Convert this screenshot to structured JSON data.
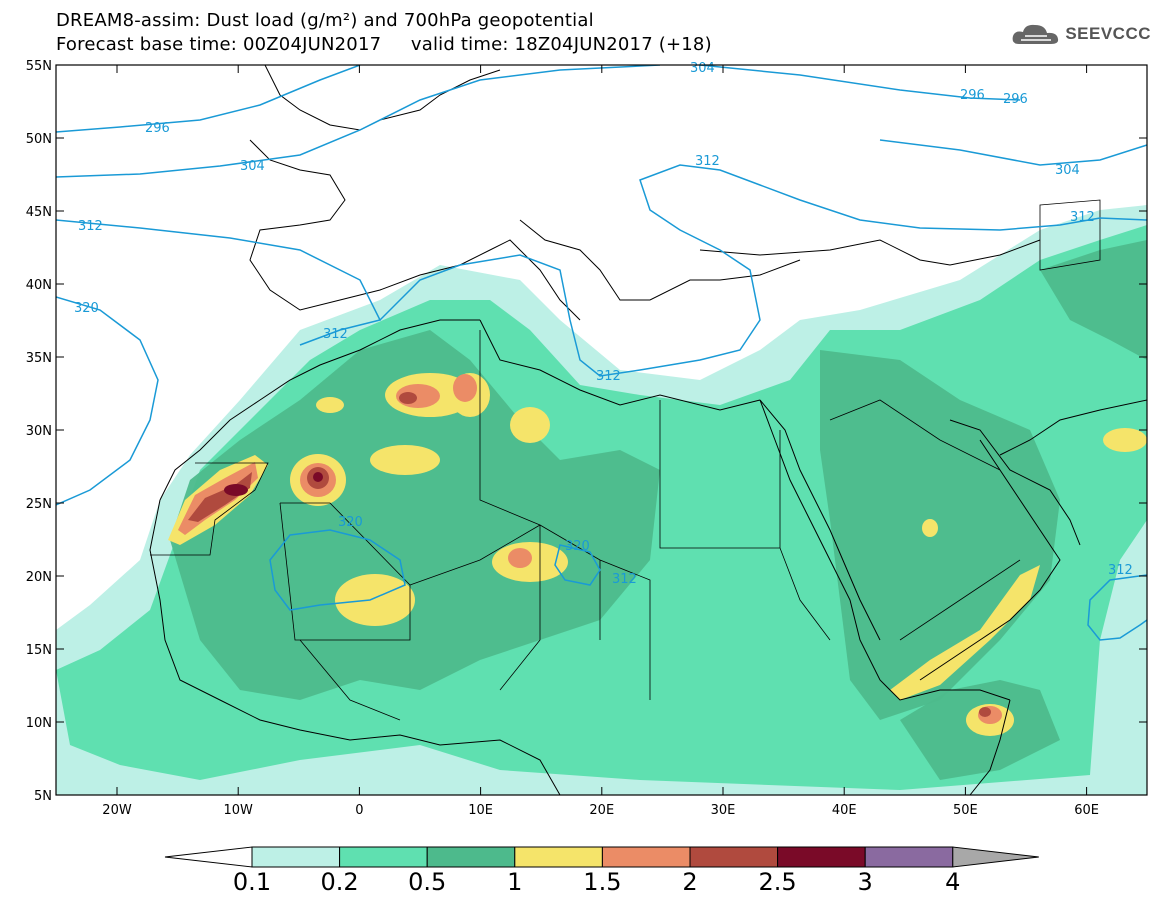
{
  "title": {
    "line1": "DREAM8-assim: Dust load (g/m²) and 700hPa geopotential",
    "line2": "Forecast base time: 00Z04JUN2017     valid time: 18Z04JUN2017 (+18)"
  },
  "logo": {
    "text": "SEEVCCC",
    "icon": "cloud-icon"
  },
  "map": {
    "lat_labels": [
      "55N",
      "50N",
      "45N",
      "40N",
      "35N",
      "30N",
      "25N",
      "20N",
      "15N",
      "10N",
      "5N"
    ],
    "lon_labels": [
      "20W",
      "10W",
      "0",
      "10E",
      "20E",
      "30E",
      "40E",
      "50E",
      "60E"
    ],
    "contour_labels": [
      "296",
      "304",
      "312",
      "320",
      "296",
      "296",
      "304",
      "312",
      "312",
      "320",
      "320",
      "312",
      "312",
      "312",
      "304",
      "312"
    ],
    "colors": {
      "land_border": "#000000",
      "contour": "#1a9ad6",
      "ocean": "#ffffff"
    }
  },
  "colorbar": {
    "labels": [
      "0.1",
      "0.2",
      "0.5",
      "1",
      "1.5",
      "2",
      "2.5",
      "3",
      "4"
    ],
    "colors": [
      "#ffffff",
      "#bdf0e6",
      "#5fe0b0",
      "#4dba8c",
      "#f5e46a",
      "#eb8c66",
      "#b04a3e",
      "#7a0a28",
      "#8a6aa0",
      "#a8a8a8"
    ]
  }
}
